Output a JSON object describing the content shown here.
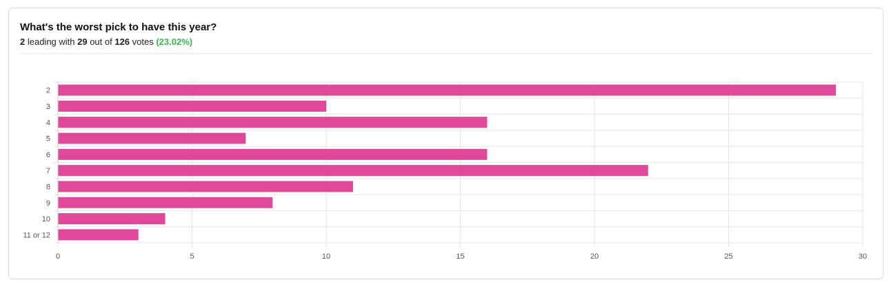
{
  "header": {
    "title": "What's the worst pick to have this year?",
    "leader": "2",
    "leading_text": " leading with ",
    "leader_votes": "29",
    "out_of_text": " out of ",
    "total_votes": "126",
    "votes_text": " votes ",
    "percent": "(23.02%)"
  },
  "colors": {
    "bar": "#e0489a",
    "grid": "#e5e5e5",
    "percent": "#39b54a"
  },
  "chart_data": {
    "type": "bar",
    "orientation": "horizontal",
    "categories": [
      "2",
      "3",
      "4",
      "5",
      "6",
      "7",
      "8",
      "9",
      "10",
      "11 or 12"
    ],
    "values": [
      29,
      10,
      16,
      7,
      16,
      22,
      11,
      8,
      4,
      3
    ],
    "xlim": [
      0,
      30
    ],
    "xticks": [
      0,
      5,
      10,
      15,
      20,
      25,
      30
    ],
    "grid": true,
    "legend": "none"
  }
}
